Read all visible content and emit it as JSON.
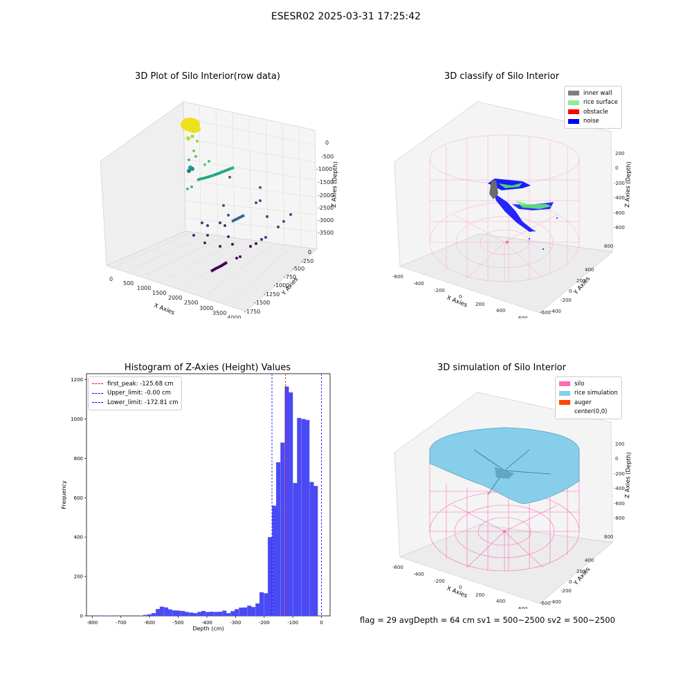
{
  "figure": {
    "suptitle": "ESESR02 2025-03-31 17:25:42",
    "footer": "flag = 29  avgDepth = 64 cm    sv1 = 500~2500  sv2 = 500~2500"
  },
  "panels": {
    "p1": {
      "title": "3D Plot of Silo Interior(row data)",
      "xlabel": "X Axies",
      "ylabel": "Y Axies",
      "zlabel": "Z Axies (Depth)",
      "xticks": [
        "0",
        "500",
        "1000",
        "1500",
        "2000",
        "2500",
        "3000",
        "3500",
        "4000"
      ],
      "yticks": [
        "0",
        "-250",
        "-500",
        "-750",
        "-1000",
        "-1250",
        "-1500",
        "-1750"
      ],
      "zticks": [
        "0",
        "-500",
        "-1000",
        "-1500",
        "-2000",
        "-2500",
        "-3000",
        "-3500"
      ]
    },
    "p2": {
      "title": "3D classify of Silo Interior",
      "xlabel": "X Axies",
      "ylabel": "Y Axies",
      "zlabel": "Z Axies (Depth)",
      "xticks": [
        "-600",
        "-400",
        "-200",
        "0",
        "200",
        "400",
        "600"
      ],
      "yticks": [
        "600",
        "400",
        "200",
        "0",
        "-200",
        "-400",
        "-600"
      ],
      "zticks": [
        "200",
        "0",
        "-200",
        "-400",
        "-600",
        "-800"
      ],
      "legend": [
        {
          "label": "inner wall",
          "color": "#808080"
        },
        {
          "label": "rice surface",
          "color": "#90ee90"
        },
        {
          "label": "obstacle",
          "color": "#ff0000"
        },
        {
          "label": "noise",
          "color": "#0000ff"
        }
      ]
    },
    "p4": {
      "title": "3D simulation of Silo Interior",
      "xlabel": "X Axies",
      "ylabel": "Y Axies",
      "zlabel": "Z Axies (Depth)",
      "xticks": [
        "-600",
        "-400",
        "-200",
        "0",
        "200",
        "400",
        "600"
      ],
      "yticks": [
        "600",
        "400",
        "200",
        "0",
        "-200",
        "-400",
        "-600"
      ],
      "zticks": [
        "200",
        "0",
        "-200",
        "-400",
        "-600",
        "-800"
      ],
      "legend": [
        {
          "label": "silo",
          "color": "#ff69b4"
        },
        {
          "label": "rice simulation",
          "color": "#87ceeb"
        },
        {
          "label": "auger",
          "color": "#ff4500"
        },
        {
          "label": "center(0,0)",
          "color": "#ffffff"
        }
      ]
    }
  },
  "chart_data": {
    "type": "bar",
    "title": "Histogram of Z-Axies (Height) Values",
    "xlabel": "Depth (cm)",
    "ylabel": "Frequency",
    "xlim": [
      -820,
      30
    ],
    "ylim": [
      0,
      1230
    ],
    "xticks": [
      -800,
      -700,
      -600,
      -500,
      -400,
      -300,
      -200,
      -100,
      0
    ],
    "yticks": [
      0,
      200,
      400,
      600,
      800,
      1000,
      1200
    ],
    "bin_width": 14.5,
    "bars": [
      {
        "x": -760,
        "y": 2
      },
      {
        "x": -745,
        "y": 2
      },
      {
        "x": -730,
        "y": 2
      },
      {
        "x": -630,
        "y": 2
      },
      {
        "x": -615,
        "y": 5
      },
      {
        "x": -600,
        "y": 8
      },
      {
        "x": -586,
        "y": 14
      },
      {
        "x": -571,
        "y": 35
      },
      {
        "x": -557,
        "y": 47
      },
      {
        "x": -542,
        "y": 43
      },
      {
        "x": -528,
        "y": 33
      },
      {
        "x": -513,
        "y": 28
      },
      {
        "x": -499,
        "y": 27
      },
      {
        "x": -484,
        "y": 25
      },
      {
        "x": -470,
        "y": 20
      },
      {
        "x": -455,
        "y": 17
      },
      {
        "x": -441,
        "y": 14
      },
      {
        "x": -426,
        "y": 20
      },
      {
        "x": -412,
        "y": 25
      },
      {
        "x": -397,
        "y": 20
      },
      {
        "x": -383,
        "y": 21
      },
      {
        "x": -368,
        "y": 20
      },
      {
        "x": -354,
        "y": 21
      },
      {
        "x": -339,
        "y": 27
      },
      {
        "x": -325,
        "y": 14
      },
      {
        "x": -310,
        "y": 24
      },
      {
        "x": -296,
        "y": 34
      },
      {
        "x": -281,
        "y": 42
      },
      {
        "x": -267,
        "y": 43
      },
      {
        "x": -252,
        "y": 52
      },
      {
        "x": -238,
        "y": 45
      },
      {
        "x": -223,
        "y": 63
      },
      {
        "x": -209,
        "y": 120
      },
      {
        "x": -194,
        "y": 115
      },
      {
        "x": -180,
        "y": 400
      },
      {
        "x": -165,
        "y": 560
      },
      {
        "x": -151,
        "y": 780
      },
      {
        "x": -136,
        "y": 880
      },
      {
        "x": -121,
        "y": 1165
      },
      {
        "x": -107,
        "y": 1135
      },
      {
        "x": -92,
        "y": 675
      },
      {
        "x": -78,
        "y": 1005
      },
      {
        "x": -63,
        "y": 1000
      },
      {
        "x": -49,
        "y": 995
      },
      {
        "x": -34,
        "y": 680
      },
      {
        "x": -20,
        "y": 660
      }
    ],
    "vlines": [
      {
        "label": "first_peak: -125.68 cm",
        "x": -125.68,
        "color": "#ff0000"
      },
      {
        "label": "Upper_limit: -0.00 cm",
        "x": -0.0,
        "color": "#0000ff"
      },
      {
        "label": "Lower_limit: -172.81 cm",
        "x": -172.81,
        "color": "#0000ff"
      }
    ]
  }
}
